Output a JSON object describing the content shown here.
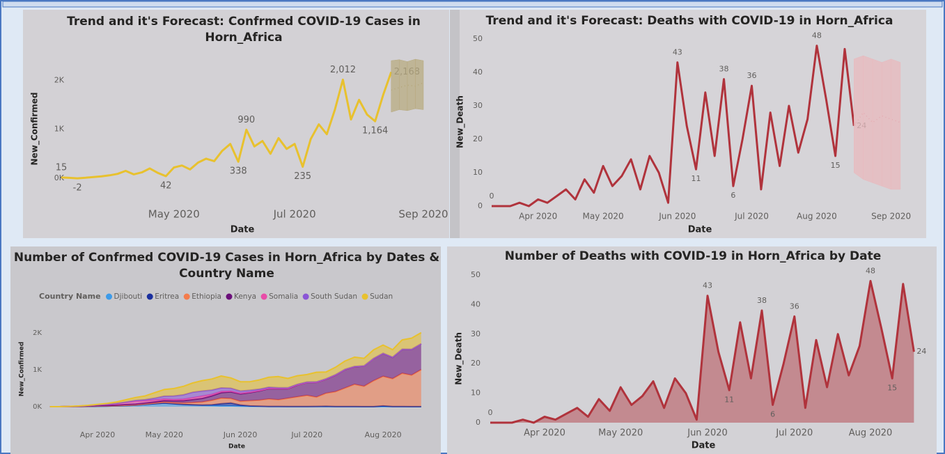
{
  "chart_data": [
    {
      "type": "line",
      "title": "Trend and it's Forecast: Confrmed COVID-19 Cases in Horn_Africa",
      "x_label": "Date",
      "y_label": "New_Confirmed",
      "categories": [
        null,
        null,
        null,
        null,
        null,
        null,
        null,
        null,
        null,
        null,
        null,
        null,
        null,
        null,
        "May 2020",
        null,
        null,
        null,
        null,
        null,
        null,
        null,
        null,
        null,
        null,
        null,
        null,
        null,
        null,
        "Jul 2020",
        null,
        null,
        null,
        null,
        null,
        null,
        null,
        null,
        null,
        null,
        null,
        null,
        null,
        null,
        null,
        "Sep 2020"
      ],
      "series": [
        {
          "color": "#e8c12e",
          "values": [
            15,
            8,
            -2,
            10,
            25,
            40,
            60,
            90,
            150,
            80,
            120,
            200,
            110,
            42,
            220,
            260,
            180,
            320,
            400,
            350,
            560,
            700,
            338,
            990,
            650,
            760,
            500,
            820,
            600,
            700,
            235,
            800,
            1100,
            900,
            1400,
            2012,
            1200,
            1600,
            1300,
            1164,
            1700,
            2168,
            null,
            null,
            null,
            null
          ],
          "value_labels": [
            "15",
            null,
            "-2",
            null,
            null,
            null,
            null,
            null,
            null,
            null,
            null,
            null,
            null,
            "42",
            null,
            null,
            null,
            null,
            null,
            null,
            null,
            null,
            "338",
            "990",
            null,
            null,
            null,
            null,
            null,
            null,
            "235",
            null,
            null,
            null,
            null,
            "2,012",
            null,
            null,
            null,
            "1,164",
            null,
            "2,168",
            null,
            null,
            null,
            null
          ]
        },
        {
          "color": "#a89660",
          "style": "dotted",
          "values": [
            null,
            null,
            null,
            null,
            null,
            null,
            null,
            null,
            null,
            null,
            null,
            null,
            null,
            null,
            null,
            null,
            null,
            null,
            null,
            null,
            null,
            null,
            null,
            null,
            null,
            null,
            null,
            null,
            null,
            null,
            null,
            null,
            null,
            null,
            null,
            null,
            null,
            null,
            null,
            null,
            null,
            1800,
            1850,
            1900,
            1880,
            1950
          ]
        },
        {
          "color": "#b8ab80",
          "style": "band",
          "values": [
            null,
            null,
            null,
            null,
            null,
            null,
            null,
            null,
            null,
            null,
            null,
            null,
            null,
            null,
            null,
            null,
            null,
            null,
            null,
            null,
            null,
            null,
            null,
            null,
            null,
            null,
            null,
            null,
            null,
            null,
            null,
            null,
            null,
            null,
            null,
            null,
            null,
            null,
            null,
            null,
            null,
            2400,
            2420,
            2380,
            2430,
            2400
          ],
          "lower": [
            null,
            null,
            null,
            null,
            null,
            null,
            null,
            null,
            null,
            null,
            null,
            null,
            null,
            null,
            null,
            null,
            null,
            null,
            null,
            null,
            null,
            null,
            null,
            null,
            null,
            null,
            null,
            null,
            null,
            null,
            null,
            null,
            null,
            null,
            null,
            null,
            null,
            null,
            null,
            null,
            null,
            1350,
            1400,
            1380,
            1420,
            1400
          ]
        }
      ],
      "ylim": [
        -270,
        2430
      ],
      "yticks": [
        {
          "value": 0,
          "label": "0K"
        },
        {
          "value": 1000,
          "label": "1K"
        },
        {
          "value": 2000,
          "label": "2K"
        }
      ],
      "grid": false
    },
    {
      "type": "line",
      "title": "Trend and it's Forecast: Deaths with COVID-19 in Horn_Africa",
      "x_label": "Date",
      "y_label": "New_Death",
      "categories": [
        null,
        null,
        null,
        null,
        null,
        "Apr 2020",
        null,
        null,
        null,
        null,
        null,
        null,
        "May 2020",
        null,
        null,
        null,
        null,
        null,
        null,
        null,
        "Jun 2020",
        null,
        null,
        null,
        null,
        null,
        null,
        null,
        "Jul 2020",
        null,
        null,
        null,
        null,
        null,
        null,
        "Aug 2020",
        null,
        null,
        null,
        null,
        null,
        null,
        null,
        "Sep 2020",
        null
      ],
      "series": [
        {
          "color": "#b0333c",
          "values": [
            0,
            0,
            0,
            1,
            0,
            2,
            1,
            3,
            5,
            2,
            8,
            4,
            12,
            6,
            9,
            14,
            5,
            15,
            10,
            1,
            43,
            24,
            11,
            34,
            15,
            38,
            6,
            20,
            36,
            5,
            28,
            12,
            30,
            16,
            26,
            48,
            32,
            15,
            47,
            24,
            null,
            null,
            null,
            null,
            null
          ],
          "value_labels": [
            "0",
            null,
            null,
            null,
            null,
            null,
            null,
            null,
            null,
            null,
            null,
            null,
            null,
            null,
            null,
            null,
            null,
            null,
            null,
            null,
            "43",
            null,
            "11",
            null,
            null,
            "38",
            "6",
            null,
            "36",
            null,
            null,
            null,
            null,
            null,
            null,
            "48",
            null,
            "15",
            null,
            "24",
            null,
            null,
            null,
            null,
            null
          ]
        },
        {
          "color": "#d77a86",
          "style": "dotted",
          "values": [
            null,
            null,
            null,
            null,
            null,
            null,
            null,
            null,
            null,
            null,
            null,
            null,
            null,
            null,
            null,
            null,
            null,
            null,
            null,
            null,
            null,
            null,
            null,
            null,
            null,
            null,
            null,
            null,
            null,
            null,
            null,
            null,
            null,
            null,
            null,
            null,
            null,
            null,
            null,
            24,
            28,
            25,
            27,
            26,
            25
          ]
        },
        {
          "color": "#e8b9be",
          "style": "band",
          "values": [
            null,
            null,
            null,
            null,
            null,
            null,
            null,
            null,
            null,
            null,
            null,
            null,
            null,
            null,
            null,
            null,
            null,
            null,
            null,
            null,
            null,
            null,
            null,
            null,
            null,
            null,
            null,
            null,
            null,
            null,
            null,
            null,
            null,
            null,
            null,
            null,
            null,
            null,
            null,
            44,
            45,
            44,
            43,
            44,
            43
          ],
          "lower": [
            null,
            null,
            null,
            null,
            null,
            null,
            null,
            null,
            null,
            null,
            null,
            null,
            null,
            null,
            null,
            null,
            null,
            null,
            null,
            null,
            null,
            null,
            null,
            null,
            null,
            null,
            null,
            null,
            null,
            null,
            null,
            null,
            null,
            null,
            null,
            null,
            null,
            null,
            null,
            10,
            8,
            7,
            6,
            5,
            5
          ]
        }
      ],
      "ylim": [
        -1,
        51
      ],
      "yticks": [
        0,
        10,
        20,
        30,
        40,
        50
      ],
      "grid": false
    },
    {
      "type": "area",
      "stacked": true,
      "title": "Number of Confrmed COVID-19 Cases in Horn_Africa by Dates & Country Name",
      "x_label": "Date",
      "y_label": "New_Confirmed",
      "legend_title": "Country Name",
      "legend": "top-left",
      "categories": [
        null,
        null,
        null,
        null,
        null,
        "Apr 2020",
        null,
        null,
        null,
        null,
        null,
        null,
        "May 2020",
        null,
        null,
        null,
        null,
        null,
        null,
        null,
        "Jun 2020",
        null,
        null,
        null,
        null,
        null,
        null,
        "Jul 2020",
        null,
        null,
        null,
        null,
        null,
        null,
        null,
        "Aug 2020",
        null,
        null,
        null,
        null
      ],
      "series": [
        {
          "name": "Djibouti",
          "color": "#3d9be9",
          "values": [
            0,
            0,
            1,
            2,
            5,
            10,
            15,
            20,
            30,
            40,
            60,
            80,
            100,
            80,
            60,
            50,
            40,
            30,
            20,
            20,
            15,
            10,
            10,
            5,
            5,
            5,
            5,
            3,
            3,
            2,
            2,
            2,
            2,
            1,
            1,
            1,
            1,
            1,
            1,
            1
          ]
        },
        {
          "name": "Eritrea",
          "color": "#1a2f9e",
          "values": [
            0,
            0,
            1,
            2,
            3,
            5,
            2,
            1,
            0,
            0,
            0,
            0,
            0,
            0,
            0,
            1,
            5,
            20,
            60,
            80,
            30,
            10,
            5,
            3,
            2,
            1,
            1,
            1,
            5,
            10,
            3,
            1,
            1,
            0,
            0,
            20,
            5,
            2,
            1,
            0
          ]
        },
        {
          "name": "Ethiopia",
          "color": "#f47c4c",
          "values": [
            0,
            0,
            1,
            2,
            3,
            5,
            5,
            8,
            10,
            10,
            15,
            20,
            25,
            30,
            40,
            60,
            80,
            120,
            150,
            120,
            100,
            140,
            160,
            200,
            180,
            220,
            260,
            300,
            250,
            350,
            400,
            500,
            600,
            550,
            700,
            800,
            750,
            900,
            850,
            1000
          ]
        },
        {
          "name": "Kenya",
          "color": "#6b0f7a",
          "values": [
            0,
            0,
            2,
            5,
            8,
            10,
            12,
            15,
            18,
            20,
            25,
            30,
            40,
            50,
            60,
            80,
            100,
            120,
            150,
            180,
            200,
            220,
            250,
            280,
            300,
            260,
            320,
            350,
            400,
            380,
            450,
            500,
            480,
            550,
            600,
            620,
            580,
            650,
            700,
            700
          ]
        },
        {
          "name": "Somalia",
          "color": "#e84ca8",
          "values": [
            0,
            0,
            1,
            5,
            10,
            20,
            30,
            40,
            60,
            80,
            60,
            50,
            40,
            30,
            40,
            50,
            60,
            40,
            30,
            20,
            20,
            15,
            10,
            10,
            8,
            8,
            6,
            5,
            5,
            5,
            4,
            4,
            3,
            3,
            3,
            3,
            3,
            2,
            2,
            2
          ]
        },
        {
          "name": "South Sudan",
          "color": "#8a55d6",
          "values": [
            0,
            0,
            0,
            0,
            1,
            2,
            3,
            5,
            10,
            20,
            30,
            50,
            80,
            100,
            120,
            150,
            140,
            120,
            100,
            80,
            60,
            50,
            40,
            30,
            20,
            20,
            15,
            10,
            10,
            10,
            8,
            8,
            6,
            5,
            5,
            5,
            4,
            4,
            3,
            3
          ]
        },
        {
          "name": "Sudan",
          "color": "#e8c12e",
          "values": [
            0,
            0,
            1,
            2,
            5,
            10,
            20,
            40,
            60,
            80,
            100,
            150,
            180,
            200,
            230,
            250,
            280,
            300,
            320,
            280,
            250,
            230,
            250,
            270,
            300,
            250,
            230,
            200,
            260,
            180,
            200,
            220,
            250,
            200,
            230,
            220,
            200,
            250,
            300,
            300
          ]
        }
      ],
      "ylim": [
        -200,
        2400
      ],
      "yticks": [
        {
          "value": 0,
          "label": "0K"
        },
        {
          "value": 1000,
          "label": "1K"
        },
        {
          "value": 2000,
          "label": "2K"
        }
      ],
      "grid": false
    },
    {
      "type": "area",
      "stacked": false,
      "title": "Number of Deaths with COVID-19 in Horn_Africa by Date",
      "x_label": "Date",
      "y_label": "New_Death",
      "categories": [
        null,
        null,
        null,
        null,
        null,
        "Apr 2020",
        null,
        null,
        null,
        null,
        null,
        null,
        "May 2020",
        null,
        null,
        null,
        null,
        null,
        null,
        null,
        "Jun 2020",
        null,
        null,
        null,
        null,
        null,
        null,
        null,
        "Jul 2020",
        null,
        null,
        null,
        null,
        null,
        null,
        "Aug 2020",
        null,
        null,
        null,
        null
      ],
      "series": [
        {
          "color": "#b0333c",
          "values": [
            0,
            0,
            0,
            1,
            0,
            2,
            1,
            3,
            5,
            2,
            8,
            4,
            12,
            6,
            9,
            14,
            5,
            15,
            10,
            1,
            43,
            24,
            11,
            34,
            15,
            38,
            6,
            20,
            36,
            5,
            28,
            12,
            30,
            16,
            26,
            48,
            32,
            15,
            47,
            24
          ],
          "value_labels": [
            "0",
            null,
            null,
            null,
            null,
            null,
            null,
            null,
            null,
            null,
            null,
            null,
            null,
            null,
            null,
            null,
            null,
            null,
            null,
            null,
            "43",
            null,
            "11",
            null,
            null,
            "38",
            "6",
            null,
            "36",
            null,
            null,
            null,
            null,
            null,
            null,
            "48",
            null,
            "15",
            null,
            "24"
          ]
        }
      ],
      "ylim": [
        -1,
        51
      ],
      "yticks": [
        0,
        10,
        20,
        30,
        40,
        50
      ],
      "grid": false
    }
  ]
}
